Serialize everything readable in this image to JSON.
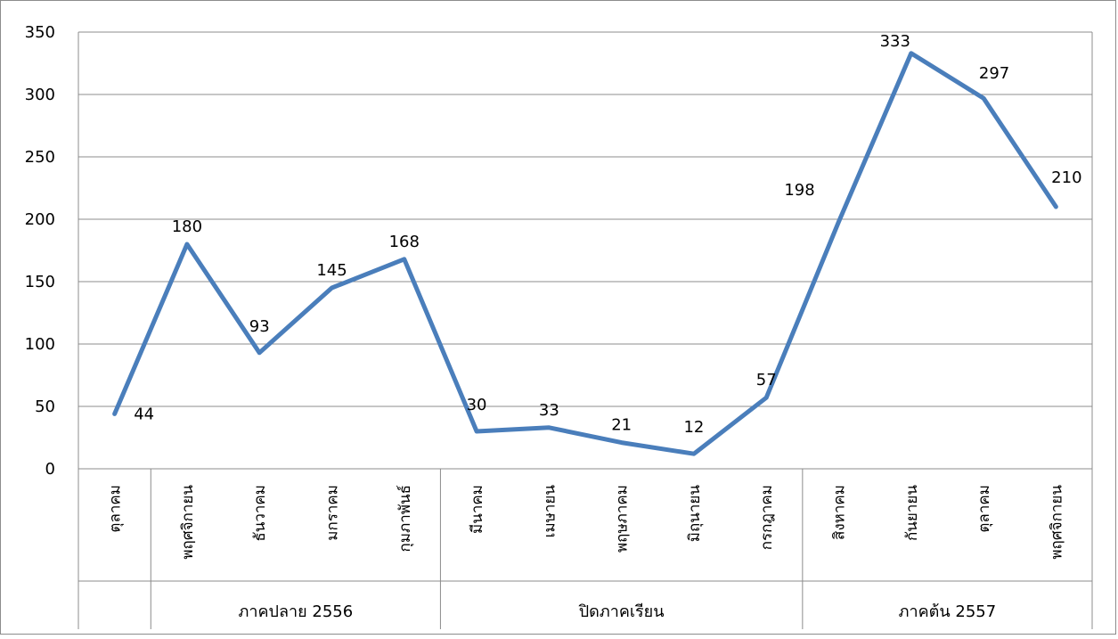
{
  "chart_data": {
    "type": "line",
    "title": "",
    "xlabel": "",
    "ylabel": "",
    "ylim": [
      0,
      350
    ],
    "y_ticks": [
      0,
      50,
      100,
      150,
      200,
      250,
      300,
      350
    ],
    "grid": true,
    "legend": "none",
    "categories": [
      "ตุลาคม",
      "พฤศจิกายน",
      "ธันวาคม",
      "มกราคม",
      "กุมภาพันธ์",
      "มีนาคม",
      "เมษายน",
      "พฤษภาคม",
      "มิถุนายน",
      "กรกฎาคม",
      "สิงหาคม",
      "กันยายน",
      "ตุลาคม",
      "พฤศจิกายน"
    ],
    "groups": [
      {
        "label": "",
        "start": 0,
        "end": 0
      },
      {
        "label": "ภาคปลาย 2556",
        "start": 1,
        "end": 4
      },
      {
        "label": "ปิดภาคเรียน",
        "start": 5,
        "end": 9
      },
      {
        "label": "ภาคต้น 2557",
        "start": 10,
        "end": 13
      }
    ],
    "series": [
      {
        "values": [
          44,
          180,
          93,
          145,
          168,
          30,
          33,
          21,
          12,
          57,
          198,
          333,
          297,
          210
        ],
        "color": "#4a7ebb"
      }
    ]
  }
}
